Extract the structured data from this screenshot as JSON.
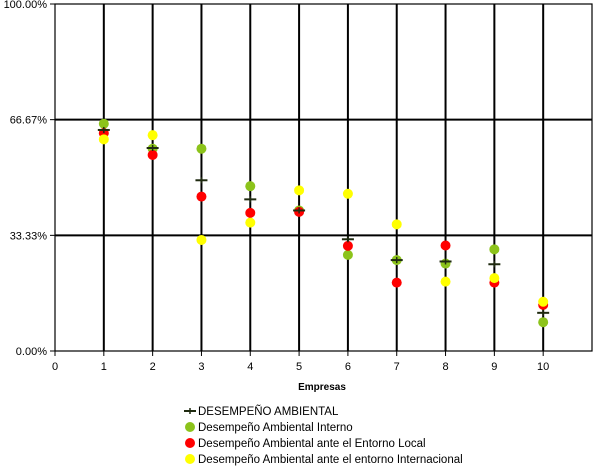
{
  "chart_data": {
    "type": "scatter",
    "title": "",
    "xlabel": "Empresas",
    "ylabel": "",
    "xlim": [
      0,
      11
    ],
    "ylim": [
      0,
      100
    ],
    "x_ticks": [
      0,
      1,
      2,
      3,
      4,
      5,
      6,
      7,
      8,
      9,
      10
    ],
    "y_ticks": [
      {
        "value": 0,
        "label": "0.00%"
      },
      {
        "value": 33.33,
        "label": "33.33%"
      },
      {
        "value": 66.67,
        "label": "66.67%"
      },
      {
        "value": 100,
        "label": "100.00%"
      }
    ],
    "grid": "vertical at each integer x, horizontal at 33.33% and 66.67%",
    "legend_position": "bottom",
    "series": [
      {
        "name": "DESEMPEÑO AMBIENTAL",
        "marker": "dash-plus",
        "color": "#1f2a10",
        "x": [
          1,
          2,
          3,
          4,
          5,
          6,
          7,
          8,
          9,
          10
        ],
        "y": [
          63.7,
          58.5,
          49.2,
          43.7,
          40.5,
          32.2,
          26.2,
          25.8,
          25.0,
          11.0
        ]
      },
      {
        "name": "Desempeño Ambiental Interno",
        "marker": "circle",
        "color": "#8cc31b",
        "x": [
          1,
          2,
          3,
          4,
          5,
          6,
          7,
          8,
          9,
          10
        ],
        "y": [
          65.5,
          58.3,
          58.3,
          47.5,
          40.5,
          27.7,
          26.2,
          25.2,
          29.3,
          8.3
        ]
      },
      {
        "name": "Desempeño Ambiental ante el Entorno Local",
        "marker": "circle",
        "color": "#ff0000",
        "x": [
          1,
          2,
          3,
          4,
          5,
          6,
          7,
          8,
          9,
          10
        ],
        "y": [
          62.8,
          56.5,
          44.5,
          39.8,
          40.1,
          30.3,
          19.7,
          30.4,
          19.7,
          13.3
        ]
      },
      {
        "name": "Desempeño Ambiental ante el entorno Internacional",
        "marker": "circle",
        "color": "#ffff00",
        "x": [
          1,
          2,
          3,
          4,
          5,
          6,
          7,
          8,
          9,
          10
        ],
        "y": [
          61.0,
          62.2,
          32.0,
          37.0,
          46.3,
          45.3,
          36.5,
          20.0,
          21.0,
          14.2
        ]
      }
    ]
  }
}
